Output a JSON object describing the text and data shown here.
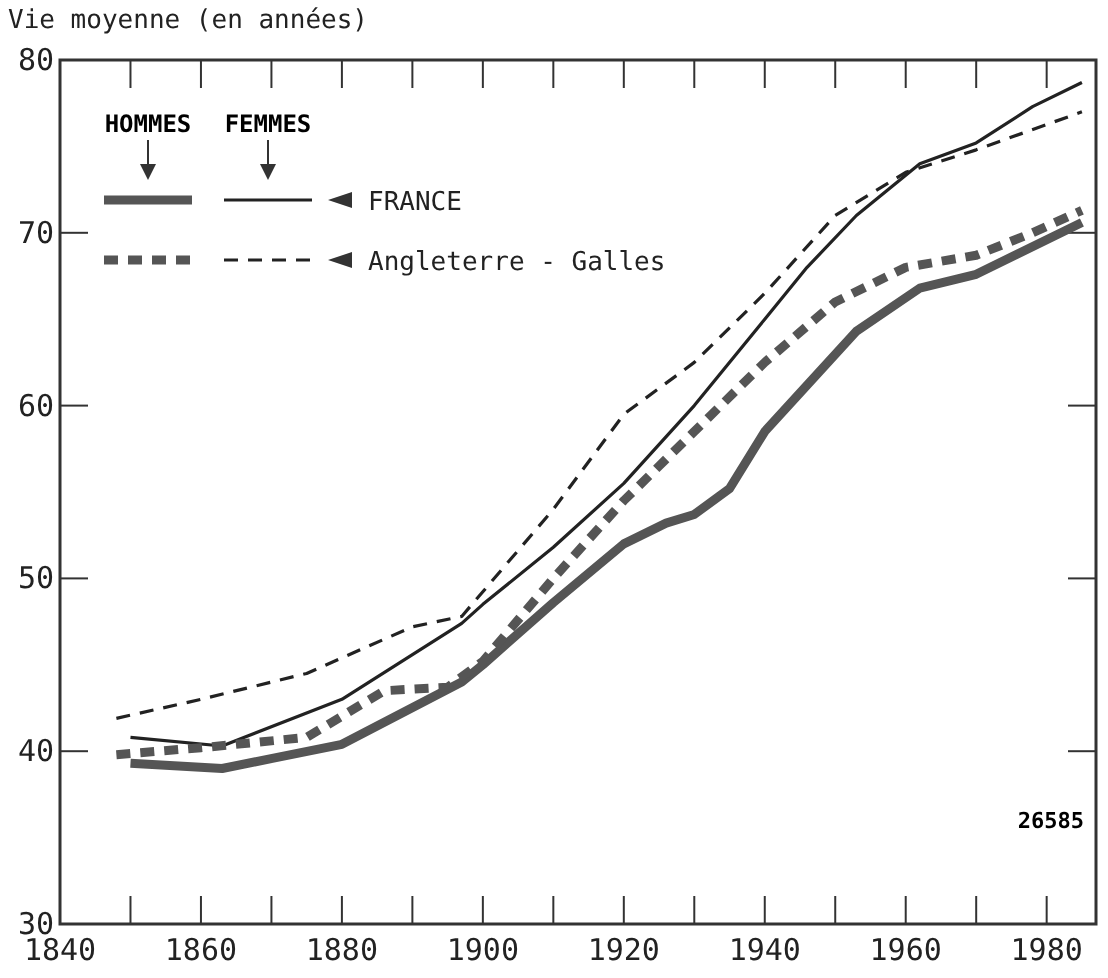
{
  "chart_data": {
    "type": "line",
    "ylabel": "Vie moyenne (en années)",
    "xlim": [
      1840,
      1987
    ],
    "xticks": [
      1840,
      {
        "value": 1850,
        "label": null
      },
      1860,
      {
        "value": 1870,
        "label": null
      },
      1880,
      {
        "value": 1890,
        "label": null
      },
      1900,
      {
        "value": 1910,
        "label": null
      },
      1920,
      {
        "value": 1930,
        "label": null
      },
      1940,
      {
        "value": 1950,
        "label": null
      },
      1960,
      {
        "value": 1970,
        "label": null
      },
      1980
    ],
    "ylim": [
      30,
      80
    ],
    "yticks": [
      30,
      40,
      50,
      60,
      70,
      80
    ],
    "grid": false,
    "annotations": [
      "HOMMES",
      "FEMMES",
      "26585",
      "FRANCE",
      "Angleterre - Galles"
    ],
    "series": [
      {
        "color": "#555555",
        "line_style": "solid",
        "x": [
          1850,
          1863,
          1880,
          1897,
          1900,
          1910,
          1920,
          1926,
          1930,
          1935,
          1940,
          1953,
          1962,
          1970,
          1985
        ],
        "values": [
          39.3,
          39,
          40.4,
          44,
          45,
          48.6,
          52,
          53.2,
          53.7,
          55.2,
          58.5,
          64.3,
          66.8,
          67.6,
          70.6
        ]
      },
      {
        "color": "#222222",
        "line_style": "solid",
        "x": [
          1850,
          1863,
          1880,
          1897,
          1900,
          1910,
          1920,
          1930,
          1940,
          1946,
          1953,
          1962,
          1970,
          1978,
          1985
        ],
        "values": [
          40.8,
          40.3,
          43,
          47.4,
          48.5,
          51.8,
          55.5,
          60,
          65,
          68,
          71,
          74,
          75.2,
          77.3,
          78.7
        ]
      },
      {
        "color": "#555555",
        "line_style": "dashed",
        "x": [
          1848,
          1860,
          1875,
          1886,
          1895,
          1900,
          1910,
          1920,
          1930,
          1940,
          1950,
          1960,
          1970,
          1978,
          1985
        ],
        "values": [
          39.8,
          40.2,
          40.8,
          43.5,
          43.7,
          45.2,
          50,
          54.5,
          58.5,
          62.5,
          66,
          68,
          68.7,
          70,
          71.3
        ]
      },
      {
        "color": "#222222",
        "line_style": "dashed",
        "x": [
          1848,
          1860,
          1875,
          1890,
          1897,
          1910,
          1920,
          1930,
          1940,
          1950,
          1960,
          1970,
          1985
        ],
        "values": [
          41.9,
          43,
          44.5,
          47.2,
          47.8,
          54,
          59.5,
          62.5,
          66.5,
          71,
          73.5,
          74.8,
          77
        ]
      }
    ]
  }
}
